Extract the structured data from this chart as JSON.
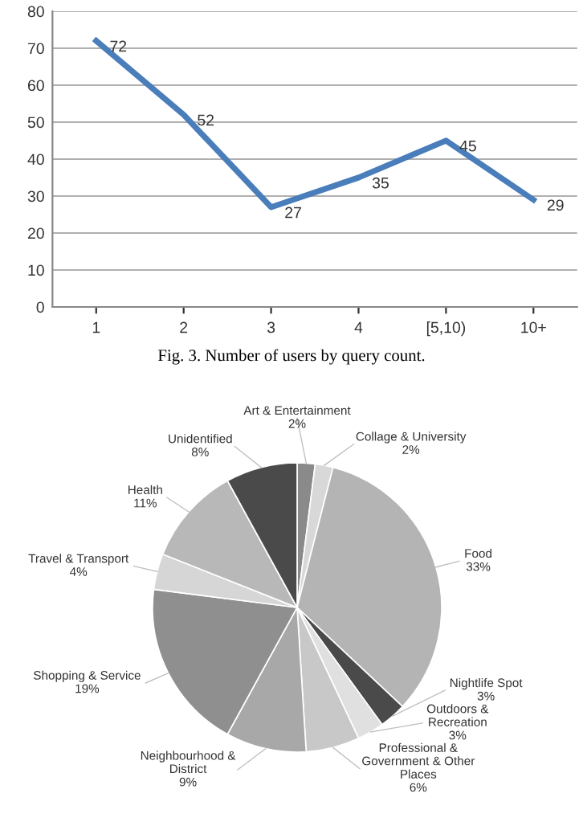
{
  "chart_data": [
    {
      "type": "line",
      "categories": [
        "1",
        "2",
        "3",
        "4",
        "[5,10)",
        "10+"
      ],
      "series": [
        {
          "color": "#4a7ebb",
          "values": [
            72,
            52,
            27,
            35,
            45,
            29
          ]
        }
      ],
      "ylim": [
        0,
        80
      ],
      "yticks": [
        0,
        10,
        20,
        30,
        40,
        50,
        60,
        70,
        80
      ],
      "grid": "y",
      "marker": "none",
      "line_style": "solid",
      "data_labels": true,
      "annotations": [
        "Fig. 3. Number of users by query count."
      ]
    },
    {
      "type": "pie",
      "categories": [
        "Art & Entertainment",
        "Collage & University",
        "Food",
        "Nightlife Spot",
        "Outdoors &\nRecreation",
        "Professional &\nGovernment & Other\nPlaces",
        "Neighbourhood &\nDistrict",
        "Shopping & Service",
        "Travel & Transport",
        "Health",
        "Unidentified"
      ],
      "values": [
        2,
        2,
        33,
        3,
        3,
        6,
        9,
        19,
        4,
        11,
        8
      ],
      "value_labels": [
        "2%",
        "2%",
        "33%",
        "3%",
        "3%",
        "6%",
        "9%",
        "19%",
        "4%",
        "11%",
        "8%"
      ],
      "colors": [
        "#8a8a8a",
        "#d8d8d8",
        "#b4b4b4",
        "#4a4a4a",
        "#e0e0e0",
        "#c8c8c8",
        "#a8a8a8",
        "#8f8f8f",
        "#d6d6d6",
        "#b8b8b8",
        "#4a4a4a"
      ]
    }
  ]
}
